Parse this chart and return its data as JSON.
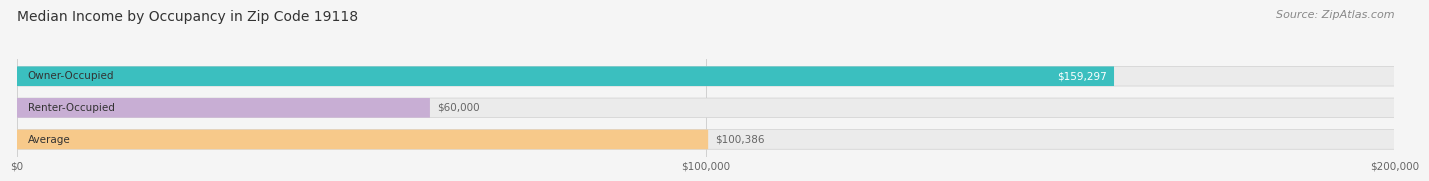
{
  "title": "Median Income by Occupancy in Zip Code 19118",
  "source": "Source: ZipAtlas.com",
  "categories": [
    "Owner-Occupied",
    "Renter-Occupied",
    "Average"
  ],
  "values": [
    159297,
    60000,
    100386
  ],
  "bar_colors": [
    "#3bbfbf",
    "#c8aed4",
    "#f7c98a"
  ],
  "bar_bg_color": "#ebebeb",
  "bar_label_colors": [
    "#ffffff",
    "#666666",
    "#666666"
  ],
  "value_labels": [
    "$159,297",
    "$60,000",
    "$100,386"
  ],
  "xlim": [
    0,
    200000
  ],
  "x_ticks": [
    0,
    100000,
    200000
  ],
  "x_tick_labels": [
    "$0",
    "$100,000",
    "$200,000"
  ],
  "title_fontsize": 10,
  "source_fontsize": 8,
  "label_fontsize": 7.5,
  "value_fontsize": 7.5,
  "bar_height": 0.62,
  "background_color": "#f5f5f5",
  "grid_color": "#d0d0d0",
  "bar_bg_shadow": "#d8d8d8"
}
